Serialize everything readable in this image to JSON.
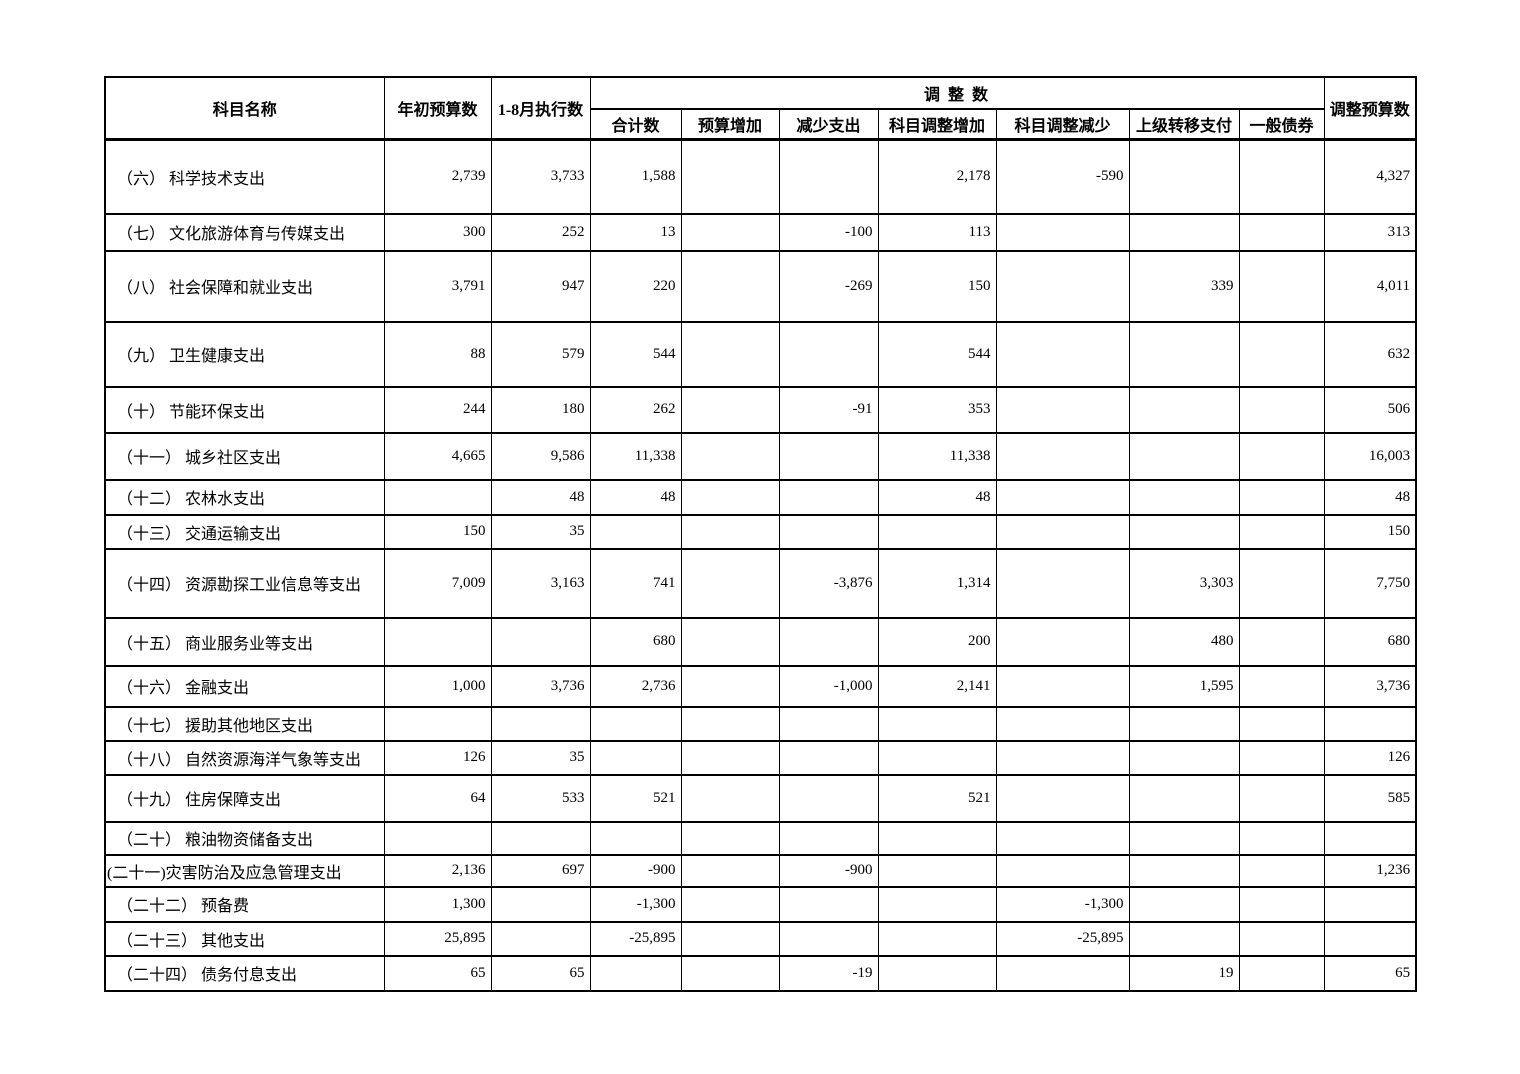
{
  "page": {
    "background_color": "#ffffff",
    "text_color": "#000000",
    "border_color": "#000000"
  },
  "table": {
    "header": {
      "subject": "科目名称",
      "initial_budget": "年初预算数",
      "jan_aug_execution": "1-8月执行数",
      "adjustment_group": "调 整 数",
      "adjusted_budget": "调整预算数",
      "sub_columns": [
        "合计数",
        "预算增加",
        "减少支出",
        "科目调整增加",
        "科目调整减少",
        "上级转移支付",
        "一般债券"
      ]
    },
    "rows": [
      {
        "name": "（六） 科学技术支出",
        "values": [
          "2,739",
          "3,733",
          "1,588",
          "",
          "",
          "2,178",
          "-590",
          "",
          "",
          "4,327"
        ]
      },
      {
        "name": "（七） 文化旅游体育与传媒支出",
        "values": [
          "300",
          "252",
          "13",
          "",
          "-100",
          "113",
          "",
          "",
          "",
          "313"
        ]
      },
      {
        "name": "（八） 社会保障和就业支出",
        "values": [
          "3,791",
          "947",
          "220",
          "",
          "-269",
          "150",
          "",
          "339",
          "",
          "4,011"
        ]
      },
      {
        "name": "（九） 卫生健康支出",
        "values": [
          "88",
          "579",
          "544",
          "",
          "",
          "544",
          "",
          "",
          "",
          "632"
        ]
      },
      {
        "name": "（十） 节能环保支出",
        "values": [
          "244",
          "180",
          "262",
          "",
          "-91",
          "353",
          "",
          "",
          "",
          "506"
        ]
      },
      {
        "name": "（十一） 城乡社区支出",
        "values": [
          "4,665",
          "9,586",
          "11,338",
          "",
          "",
          "11,338",
          "",
          "",
          "",
          "16,003"
        ]
      },
      {
        "name": "（十二） 农林水支出",
        "values": [
          "",
          "48",
          "48",
          "",
          "",
          "48",
          "",
          "",
          "",
          "48"
        ]
      },
      {
        "name": "（十三） 交通运输支出",
        "values": [
          "150",
          "35",
          "",
          "",
          "",
          "",
          "",
          "",
          "",
          "150"
        ]
      },
      {
        "name": "（十四） 资源勘探工业信息等支出",
        "values": [
          "7,009",
          "3,163",
          "741",
          "",
          "-3,876",
          "1,314",
          "",
          "3,303",
          "",
          "7,750"
        ]
      },
      {
        "name": "（十五） 商业服务业等支出",
        "values": [
          "",
          "",
          "680",
          "",
          "",
          "200",
          "",
          "480",
          "",
          "680"
        ]
      },
      {
        "name": "（十六） 金融支出",
        "values": [
          "1,000",
          "3,736",
          "2,736",
          "",
          "-1,000",
          "2,141",
          "",
          "1,595",
          "",
          "3,736"
        ]
      },
      {
        "name": "（十七） 援助其他地区支出",
        "values": [
          "",
          "",
          "",
          "",
          "",
          "",
          "",
          "",
          "",
          ""
        ]
      },
      {
        "name": "（十八） 自然资源海洋气象等支出",
        "values": [
          "126",
          "35",
          "",
          "",
          "",
          "",
          "",
          "",
          "",
          "126"
        ]
      },
      {
        "name": "（十九） 住房保障支出",
        "values": [
          "64",
          "533",
          "521",
          "",
          "",
          "521",
          "",
          "",
          "",
          "585"
        ]
      },
      {
        "name": "（二十） 粮油物资储备支出",
        "values": [
          "",
          "",
          "",
          "",
          "",
          "",
          "",
          "",
          "",
          ""
        ]
      },
      {
        "name": "(二十一)灾害防治及应急管理支出",
        "values": [
          "2,136",
          "697",
          "-900",
          "",
          "-900",
          "",
          "",
          "",
          "",
          "1,236"
        ]
      },
      {
        "name": "（二十二） 预备费",
        "values": [
          "1,300",
          "",
          "-1,300",
          "",
          "",
          "",
          "-1,300",
          "",
          "",
          ""
        ]
      },
      {
        "name": "（二十三） 其他支出",
        "values": [
          "25,895",
          "",
          "-25,895",
          "",
          "",
          "",
          "-25,895",
          "",
          "",
          ""
        ]
      },
      {
        "name": "（二十四） 债务付息支出",
        "values": [
          "65",
          "65",
          "",
          "",
          "-19",
          "",
          "",
          "19",
          "",
          "65"
        ]
      }
    ]
  }
}
